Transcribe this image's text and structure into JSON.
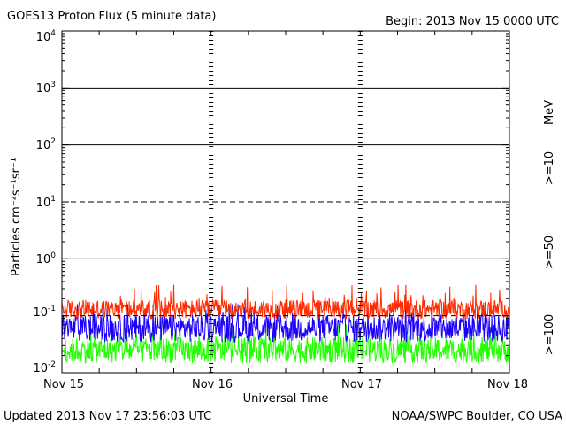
{
  "header": {
    "title": "GOES13 Proton Flux (5 minute data)",
    "begin": "Begin: 2013 Nov 15 0000 UTC"
  },
  "footer": {
    "updated": "Updated 2013 Nov 17 23:56:03 UTC",
    "credit": "NOAA/SWPC Boulder, CO USA"
  },
  "colors": {
    "ge10": "#ff2a00",
    "ge50": "#1a00ff",
    "ge100": "#22ff00",
    "axis": "#000000"
  },
  "chart_data": {
    "type": "line",
    "title": "GOES13 Proton Flux (5 minute data)",
    "xlabel": "Universal Time",
    "ylabel": "Particles cm⁻²s⁻¹sr⁻¹",
    "yscale": "log",
    "ylim": [
      0.01,
      10000
    ],
    "y_tick_labels": [
      {
        "base": "10",
        "exp": "-2"
      },
      {
        "base": "10",
        "exp": "-1"
      },
      {
        "base": "10",
        "exp": "0"
      },
      {
        "base": "10",
        "exp": "1"
      },
      {
        "base": "10",
        "exp": "2"
      },
      {
        "base": "10",
        "exp": "3"
      },
      {
        "base": "10",
        "exp": "4"
      }
    ],
    "x_tick_labels": [
      "Nov 15",
      "Nov 16",
      "Nov 17",
      "Nov 18"
    ],
    "xlim": [
      "2013-11-15 00:00",
      "2013-11-18 00:00"
    ],
    "legend_unit": "MeV",
    "legend_position": "right",
    "series": [
      {
        "name": ">=10",
        "color": "#ff2a00",
        "typical": 0.13,
        "min": 0.08,
        "max": 0.35
      },
      {
        "name": ">=50",
        "color": "#1a00ff",
        "typical": 0.06,
        "min": 0.03,
        "max": 0.16
      },
      {
        "name": ">=100",
        "color": "#22ff00",
        "typical": 0.025,
        "min": 0.013,
        "max": 0.07
      }
    ],
    "grid_lines": [
      {
        "value": 1000,
        "style": "solid"
      },
      {
        "value": 100,
        "style": "solid"
      },
      {
        "value": 10,
        "style": "dashed"
      },
      {
        "value": 1,
        "style": "solid"
      },
      {
        "value": 0.1,
        "style": "dashed"
      }
    ]
  }
}
